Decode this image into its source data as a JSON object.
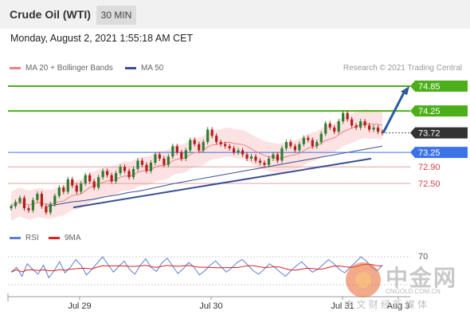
{
  "header": {
    "title": "Crude Oil (WTI)",
    "timeframe": "30 MIN"
  },
  "datetime": "Monday, August 2, 2021 1:55:18 AM CET",
  "legend": {
    "items": [
      {
        "label": "MA 20 + Bollinger Bands",
        "color": "#f08080"
      },
      {
        "label": "MA 50",
        "color": "#3a4f8f"
      }
    ],
    "credit": "Research © 2021 Trading Central"
  },
  "rsi_legend": [
    {
      "label": "RSI",
      "color": "#5b7fd6"
    },
    {
      "label": "9MA",
      "color": "#e02020"
    }
  ],
  "watermark": {
    "brand": "中金网",
    "domain": "CNGOLD.COM.CN",
    "tagline": "中 文 财 经 新 媒 体"
  },
  "colors": {
    "up": "#2e7d32",
    "down": "#b71c1c",
    "support": "#3a4f8f",
    "resistance": "#4caf1a",
    "pivot": "#3b73e6",
    "target": "#e57373"
  },
  "chart_data": {
    "type": "candlestick",
    "instrument": "Crude Oil (WTI)",
    "interval": "30 MIN",
    "current_price": 73.72,
    "levels": [
      {
        "value": 74.85,
        "kind": "resistance",
        "label": "74.85"
      },
      {
        "value": 74.25,
        "kind": "resistance",
        "label": "74.25"
      },
      {
        "value": 73.72,
        "kind": "last",
        "label": "73.72"
      },
      {
        "value": 73.25,
        "kind": "pivot",
        "label": "73.25"
      },
      {
        "value": 72.9,
        "kind": "target",
        "label": "72.90"
      },
      {
        "value": 72.5,
        "kind": "target",
        "label": "72.50"
      }
    ],
    "x_labels": [
      "Jul 29",
      "Jul 30",
      "Jul 31",
      "Aug 3"
    ],
    "closes": [
      71.95,
      72.05,
      72.15,
      71.9,
      71.85,
      72.1,
      72.25,
      71.95,
      71.8,
      72.0,
      72.2,
      72.4,
      72.3,
      72.6,
      72.45,
      72.3,
      72.5,
      72.7,
      72.55,
      72.4,
      72.65,
      72.8,
      72.7,
      72.55,
      72.75,
      72.9,
      72.8,
      72.65,
      72.85,
      73.05,
      72.95,
      72.8,
      73.0,
      73.2,
      73.1,
      72.95,
      73.15,
      73.4,
      73.25,
      73.1,
      73.3,
      73.55,
      73.45,
      73.3,
      73.5,
      73.8,
      73.65,
      73.5,
      73.45,
      73.4,
      73.35,
      73.25,
      73.3,
      73.2,
      73.1,
      73.15,
      73.05,
      73.0,
      72.95,
      73.1,
      73.2,
      73.05,
      73.35,
      73.5,
      73.4,
      73.3,
      73.45,
      73.6,
      73.55,
      73.4,
      73.5,
      73.7,
      73.95,
      73.85,
      73.75,
      74.0,
      74.2,
      74.05,
      73.9,
      73.85,
      74.0,
      73.9,
      73.8,
      73.85,
      73.75,
      73.72
    ],
    "ma50": [
      71.95,
      72.0,
      72.05,
      72.08,
      72.12,
      72.18,
      72.22,
      72.28,
      72.32,
      72.38,
      72.44,
      72.5,
      72.55,
      72.6,
      72.65,
      72.7,
      72.75,
      72.8,
      72.85,
      72.9,
      72.95,
      73.0,
      73.05,
      73.1,
      73.15,
      73.2,
      73.25,
      73.3,
      73.35,
      73.4
    ],
    "rsi": {
      "level_label": "70",
      "values": [
        48,
        55,
        42,
        60,
        52,
        45,
        58,
        40,
        50,
        63,
        47,
        55,
        66,
        58,
        44,
        52,
        61,
        70,
        59,
        48,
        56,
        64,
        52,
        45,
        58,
        67,
        55,
        49,
        61,
        68,
        57,
        46,
        53,
        62,
        55,
        44,
        50,
        58,
        64,
        56,
        48,
        54,
        62,
        66,
        58,
        50,
        45,
        52,
        60,
        55,
        48,
        42,
        50,
        57,
        63,
        55,
        48,
        52,
        59,
        66,
        60,
        52,
        47,
        55,
        62,
        70,
        64,
        55,
        50,
        58
      ]
    }
  }
}
